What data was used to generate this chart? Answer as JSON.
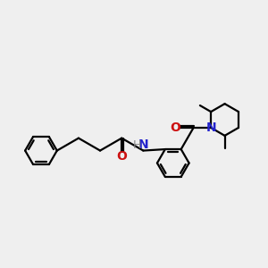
{
  "bg_color": "#efefef",
  "bond_color": "#000000",
  "bond_lw": 1.6,
  "N_color": "#2222cc",
  "O_color": "#cc1111",
  "H_color": "#888888",
  "font_size": 10,
  "font_size_small": 9,
  "xlim": [
    -3.2,
    4.8
  ],
  "ylim": [
    -2.8,
    3.2
  ]
}
